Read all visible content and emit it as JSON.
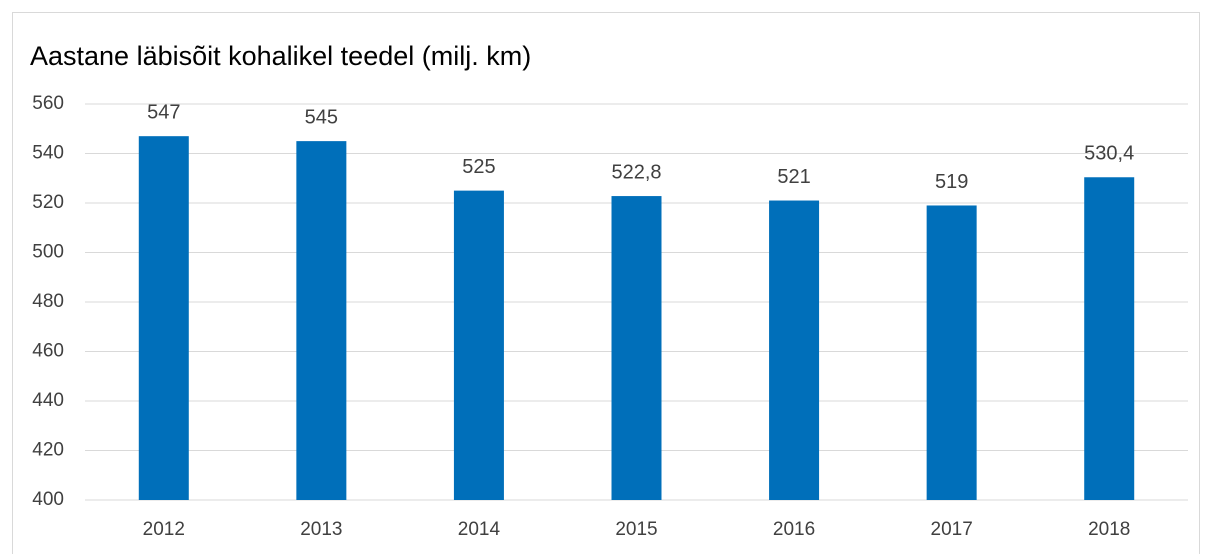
{
  "chart_data": {
    "type": "bar",
    "title": "Aastane läbisõit kohalikel teedel (milj. km)",
    "categories": [
      "2012",
      "2013",
      "2014",
      "2015",
      "2016",
      "2017",
      "2018"
    ],
    "values": [
      547,
      545,
      525,
      522.8,
      521,
      519,
      530.4
    ],
    "value_labels": [
      "547",
      "545",
      "525",
      "522,8",
      "521",
      "519",
      "530,4"
    ],
    "color": "#006fba",
    "ylim": [
      400,
      560
    ],
    "yticks": [
      400,
      420,
      440,
      460,
      480,
      500,
      520,
      540,
      560
    ],
    "grid": true
  }
}
